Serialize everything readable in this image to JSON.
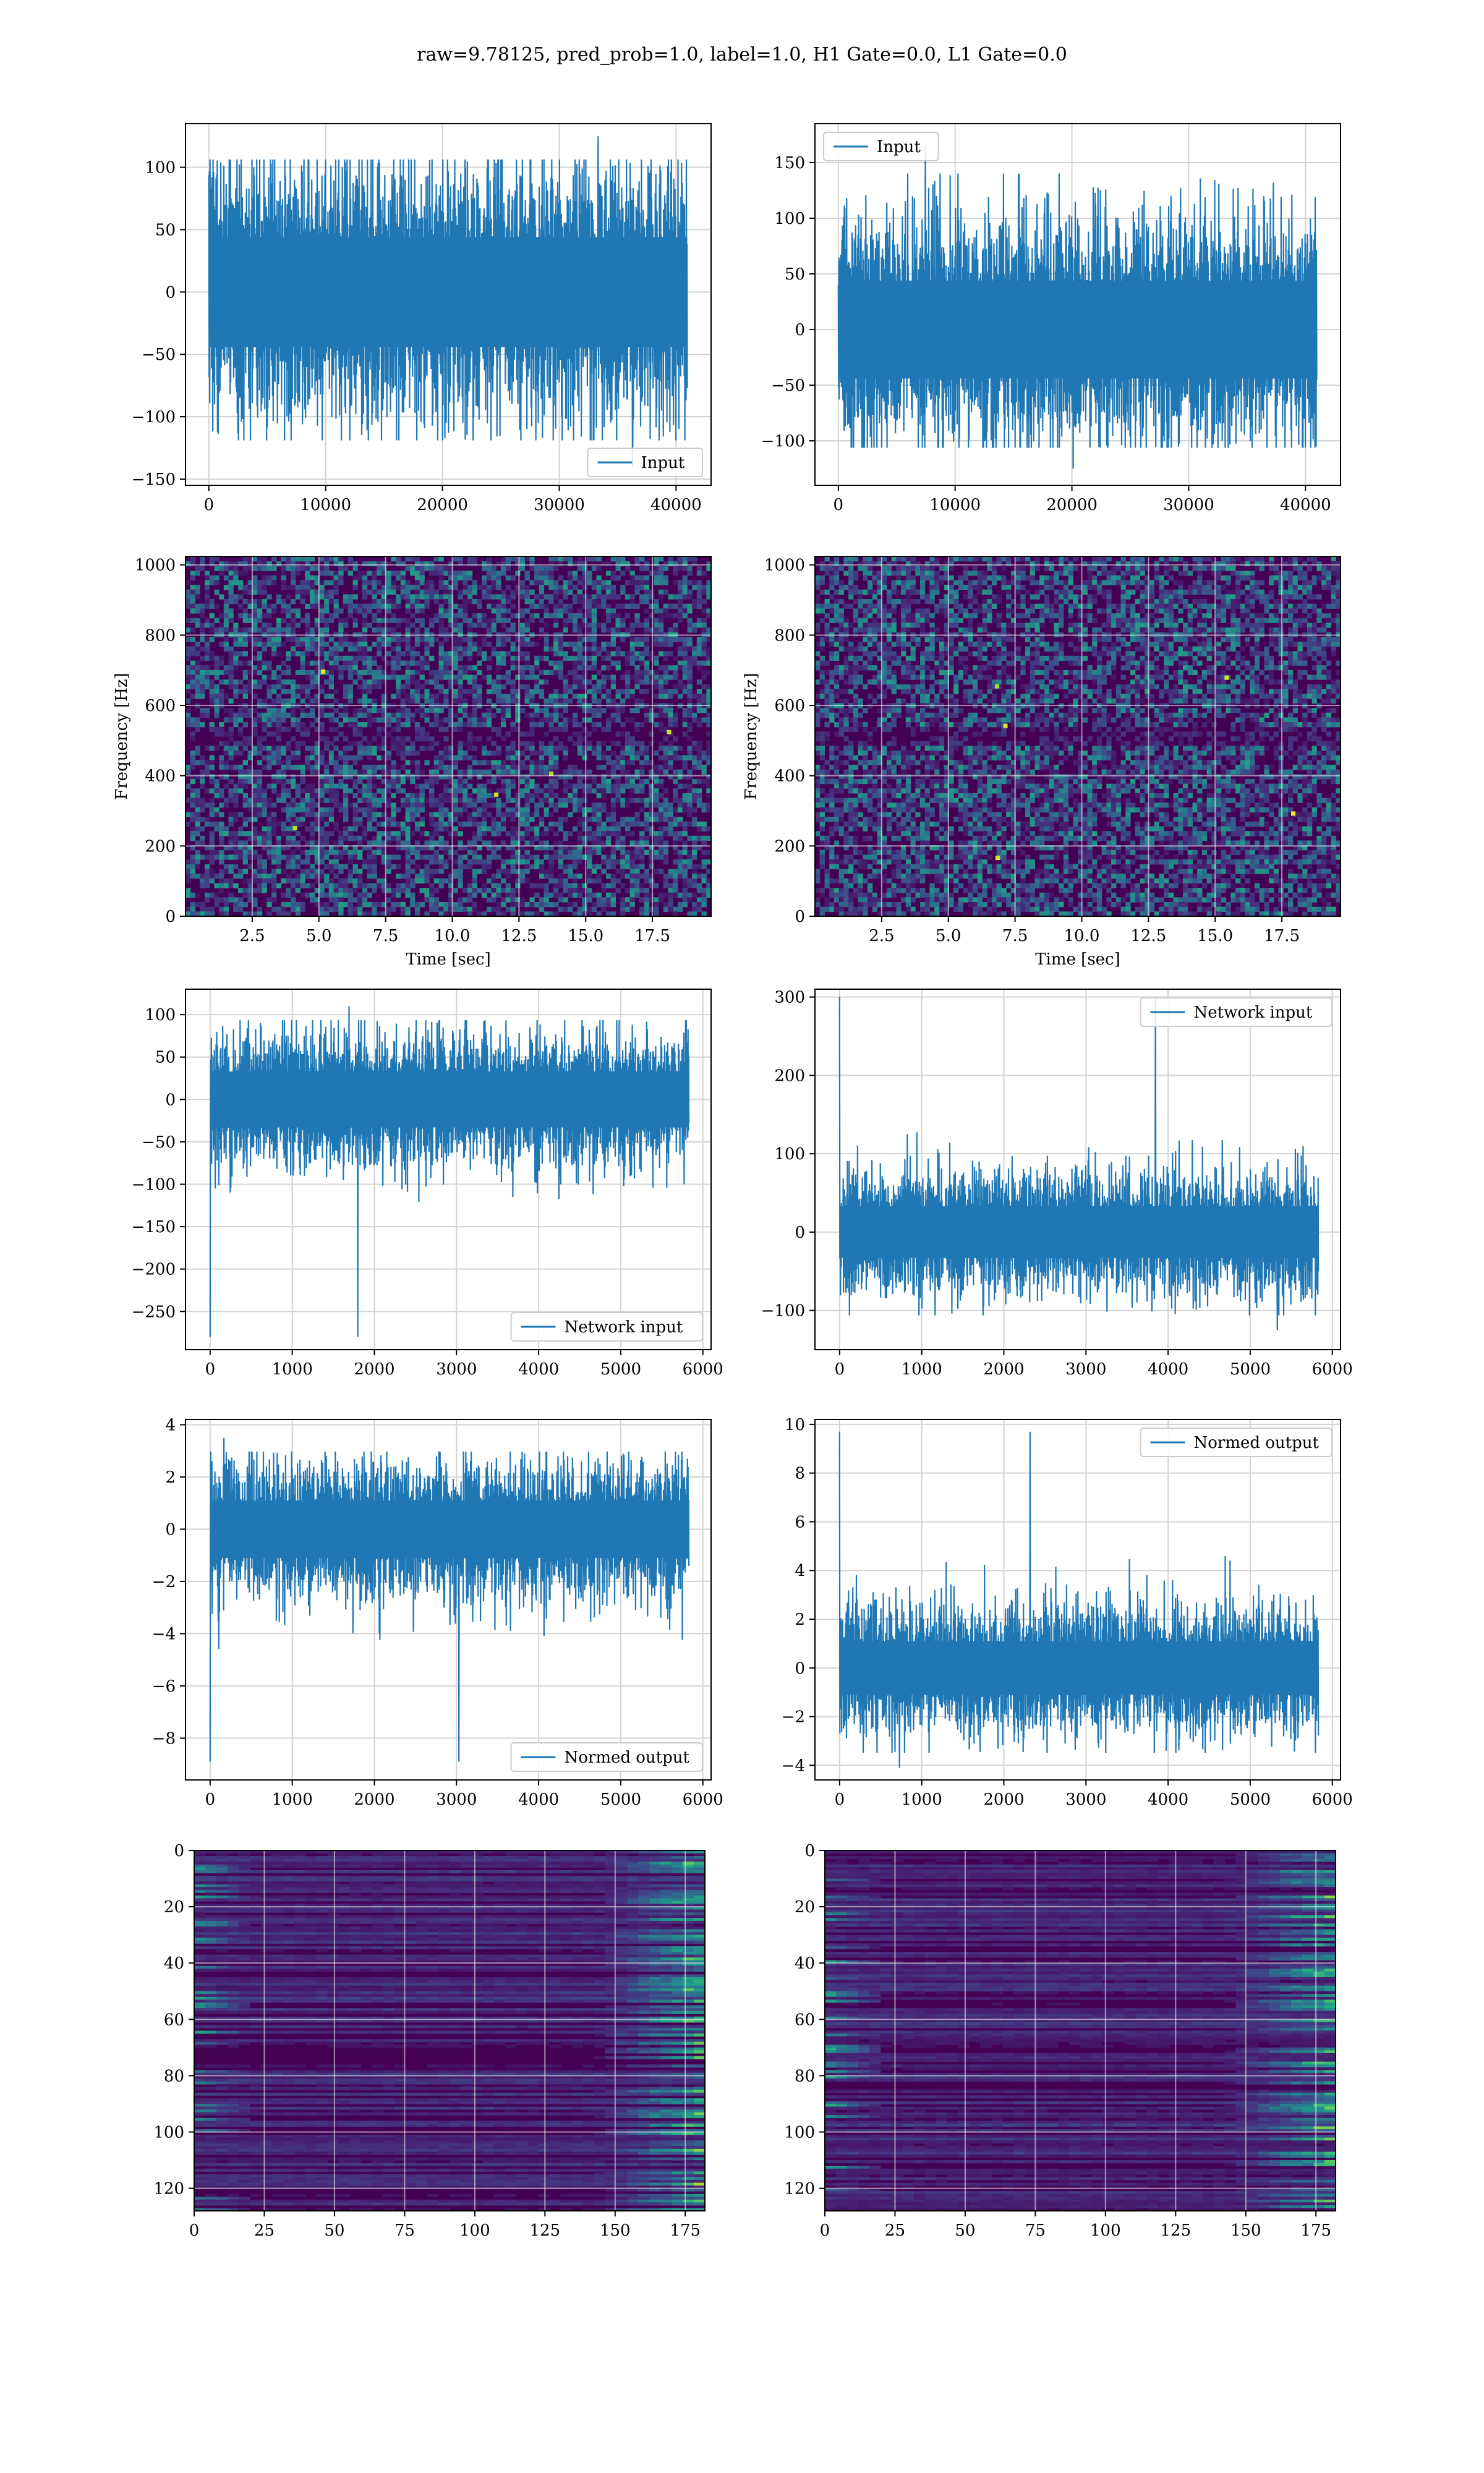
{
  "figure": {
    "suptitle": "raw=9.78125, pred_prob=1.0, label=1.0, H1 Gate=0.0, L1 Gate=0.0"
  },
  "colors": {
    "series": "#1f77b4",
    "grid": "#d3d3d3",
    "viridis": [
      "#440154",
      "#472d7b",
      "#3b528b",
      "#2c728e",
      "#21918c",
      "#28ae80",
      "#5ec962",
      "#addc30",
      "#fde725"
    ]
  },
  "chart_data": [
    {
      "id": "input-h1",
      "type": "line",
      "series": [
        {
          "name": "Input",
          "x_range": [
            0,
            40960
          ],
          "values_summary": {
            "center": 0,
            "typical_abs": 80,
            "min": -140,
            "max": 125
          }
        }
      ],
      "xlim": [
        -2000,
        43000
      ],
      "ylim": [
        -155,
        135
      ],
      "xticks": [
        0,
        10000,
        20000,
        30000,
        40000
      ],
      "xticklabels": [
        "0",
        "10000",
        "20000",
        "30000",
        "40000"
      ],
      "yticks": [
        -150,
        -100,
        -50,
        0,
        50,
        100
      ],
      "yticklabels": [
        "−150",
        "−100",
        "−50",
        "0",
        "50",
        "100"
      ],
      "xlabel": "",
      "ylabel": "",
      "grid": true,
      "legend": "lower right"
    },
    {
      "id": "input-l1",
      "type": "line",
      "series": [
        {
          "name": "Input",
          "x_range": [
            0,
            40960
          ],
          "values_summary": {
            "center": 0,
            "typical_abs": 80,
            "min": -125,
            "max": 165
          }
        }
      ],
      "xlim": [
        -2000,
        43000
      ],
      "ylim": [
        -140,
        185
      ],
      "xticks": [
        0,
        10000,
        20000,
        30000,
        40000
      ],
      "xticklabels": [
        "0",
        "10000",
        "20000",
        "30000",
        "40000"
      ],
      "yticks": [
        -100,
        -50,
        0,
        50,
        100,
        150
      ],
      "yticklabels": [
        "−100",
        "−50",
        "0",
        "50",
        "100",
        "150"
      ],
      "xlabel": "",
      "ylabel": "",
      "grid": true,
      "legend": "upper left"
    },
    {
      "id": "spectrogram-h1",
      "type": "heatmap",
      "xlim": [
        0,
        19.7
      ],
      "ylim": [
        0,
        1024
      ],
      "xticks": [
        2.5,
        5.0,
        7.5,
        10.0,
        12.5,
        15.0,
        17.5
      ],
      "xticklabels": [
        "2.5",
        "5.0",
        "7.5",
        "10.0",
        "12.5",
        "15.0",
        "17.5"
      ],
      "yticks": [
        0,
        200,
        400,
        600,
        800,
        1000
      ],
      "yticklabels": [
        "0",
        "200",
        "400",
        "600",
        "800",
        "1000"
      ],
      "xlabel": "Time [sec]",
      "ylabel": "Frequency [Hz]",
      "grid": true,
      "colormap": "viridis"
    },
    {
      "id": "spectrogram-l1",
      "type": "heatmap",
      "xlim": [
        0,
        19.7
      ],
      "ylim": [
        0,
        1024
      ],
      "xticks": [
        2.5,
        5.0,
        7.5,
        10.0,
        12.5,
        15.0,
        17.5
      ],
      "xticklabels": [
        "2.5",
        "5.0",
        "7.5",
        "10.0",
        "12.5",
        "15.0",
        "17.5"
      ],
      "yticks": [
        0,
        200,
        400,
        600,
        800,
        1000
      ],
      "yticklabels": [
        "0",
        "200",
        "400",
        "600",
        "800",
        "1000"
      ],
      "xlabel": "Time [sec]",
      "ylabel": "Frequency [Hz]",
      "grid": true,
      "colormap": "viridis"
    },
    {
      "id": "network-input-h1",
      "type": "line",
      "series": [
        {
          "name": "Network input",
          "x_range": [
            0,
            5830
          ],
          "values_summary": {
            "center": 0,
            "typical_abs": 60,
            "min": -280,
            "max": 110
          }
        }
      ],
      "xlim": [
        -300,
        6100
      ],
      "ylim": [
        -295,
        130
      ],
      "xticks": [
        0,
        1000,
        2000,
        3000,
        4000,
        5000,
        6000
      ],
      "xticklabels": [
        "0",
        "1000",
        "2000",
        "3000",
        "4000",
        "5000",
        "6000"
      ],
      "yticks": [
        -250,
        -200,
        -150,
        -100,
        -50,
        0,
        50,
        100
      ],
      "yticklabels": [
        "−250",
        "−200",
        "−150",
        "−100",
        "−50",
        "0",
        "50",
        "100"
      ],
      "xlabel": "",
      "ylabel": "",
      "grid": true,
      "legend": "lower right"
    },
    {
      "id": "network-input-l1",
      "type": "line",
      "series": [
        {
          "name": "Network input",
          "x_range": [
            0,
            5830
          ],
          "values_summary": {
            "center": 0,
            "typical_abs": 60,
            "min": -125,
            "max": 300
          }
        }
      ],
      "xlim": [
        -300,
        6100
      ],
      "ylim": [
        -150,
        310
      ],
      "xticks": [
        0,
        1000,
        2000,
        3000,
        4000,
        5000,
        6000
      ],
      "xticklabels": [
        "0",
        "1000",
        "2000",
        "3000",
        "4000",
        "5000",
        "6000"
      ],
      "yticks": [
        -100,
        0,
        100,
        200,
        300
      ],
      "yticklabels": [
        "−100",
        "0",
        "100",
        "200",
        "300"
      ],
      "xlabel": "",
      "ylabel": "",
      "grid": true,
      "legend": "upper right"
    },
    {
      "id": "normed-output-h1",
      "type": "line",
      "series": [
        {
          "name": "Normed output",
          "x_range": [
            0,
            5830
          ],
          "values_summary": {
            "center": 0,
            "typical_abs": 2,
            "min": -8.9,
            "max": 3.5
          }
        }
      ],
      "xlim": [
        -300,
        6100
      ],
      "ylim": [
        -9.6,
        4.2
      ],
      "xticks": [
        0,
        1000,
        2000,
        3000,
        4000,
        5000,
        6000
      ],
      "xticklabels": [
        "0",
        "1000",
        "2000",
        "3000",
        "4000",
        "5000",
        "6000"
      ],
      "yticks": [
        -8,
        -6,
        -4,
        -2,
        0,
        2,
        4
      ],
      "yticklabels": [
        "−8",
        "−6",
        "−4",
        "−2",
        "0",
        "2",
        "4"
      ],
      "xlabel": "",
      "ylabel": "",
      "grid": true,
      "legend": "lower right"
    },
    {
      "id": "normed-output-l1",
      "type": "line",
      "series": [
        {
          "name": "Normed output",
          "x_range": [
            0,
            5830
          ],
          "values_summary": {
            "center": 0,
            "typical_abs": 2,
            "min": -4.1,
            "max": 9.7
          }
        }
      ],
      "xlim": [
        -300,
        6100
      ],
      "ylim": [
        -4.6,
        10.2
      ],
      "xticks": [
        0,
        1000,
        2000,
        3000,
        4000,
        5000,
        6000
      ],
      "xticklabels": [
        "0",
        "1000",
        "2000",
        "3000",
        "4000",
        "5000",
        "6000"
      ],
      "yticks": [
        -4,
        -2,
        0,
        2,
        4,
        6,
        8,
        10
      ],
      "yticklabels": [
        "−4",
        "−2",
        "0",
        "2",
        "4",
        "6",
        "8",
        "10"
      ],
      "xlabel": "",
      "ylabel": "",
      "grid": true,
      "legend": "upper right"
    },
    {
      "id": "feature-map-h1",
      "type": "heatmap",
      "xlim": [
        0,
        182
      ],
      "ylim": [
        128,
        0
      ],
      "xticks": [
        0,
        25,
        50,
        75,
        100,
        125,
        150,
        175
      ],
      "xticklabels": [
        "0",
        "25",
        "50",
        "75",
        "100",
        "125",
        "150",
        "175"
      ],
      "yticks": [
        0,
        20,
        40,
        60,
        80,
        100,
        120
      ],
      "yticklabels": [
        "0",
        "20",
        "40",
        "60",
        "80",
        "100",
        "120"
      ],
      "xlabel": "",
      "ylabel": "",
      "grid": true,
      "colormap": "viridis"
    },
    {
      "id": "feature-map-l1",
      "type": "heatmap",
      "xlim": [
        0,
        182
      ],
      "ylim": [
        128,
        0
      ],
      "xticks": [
        0,
        25,
        50,
        75,
        100,
        125,
        150,
        175
      ],
      "xticklabels": [
        "0",
        "25",
        "50",
        "75",
        "100",
        "125",
        "150",
        "175"
      ],
      "yticks": [
        0,
        20,
        40,
        60,
        80,
        100,
        120
      ],
      "yticklabels": [
        "0",
        "20",
        "40",
        "60",
        "80",
        "100",
        "120"
      ],
      "xlabel": "",
      "ylabel": "",
      "grid": true,
      "colormap": "viridis"
    }
  ]
}
